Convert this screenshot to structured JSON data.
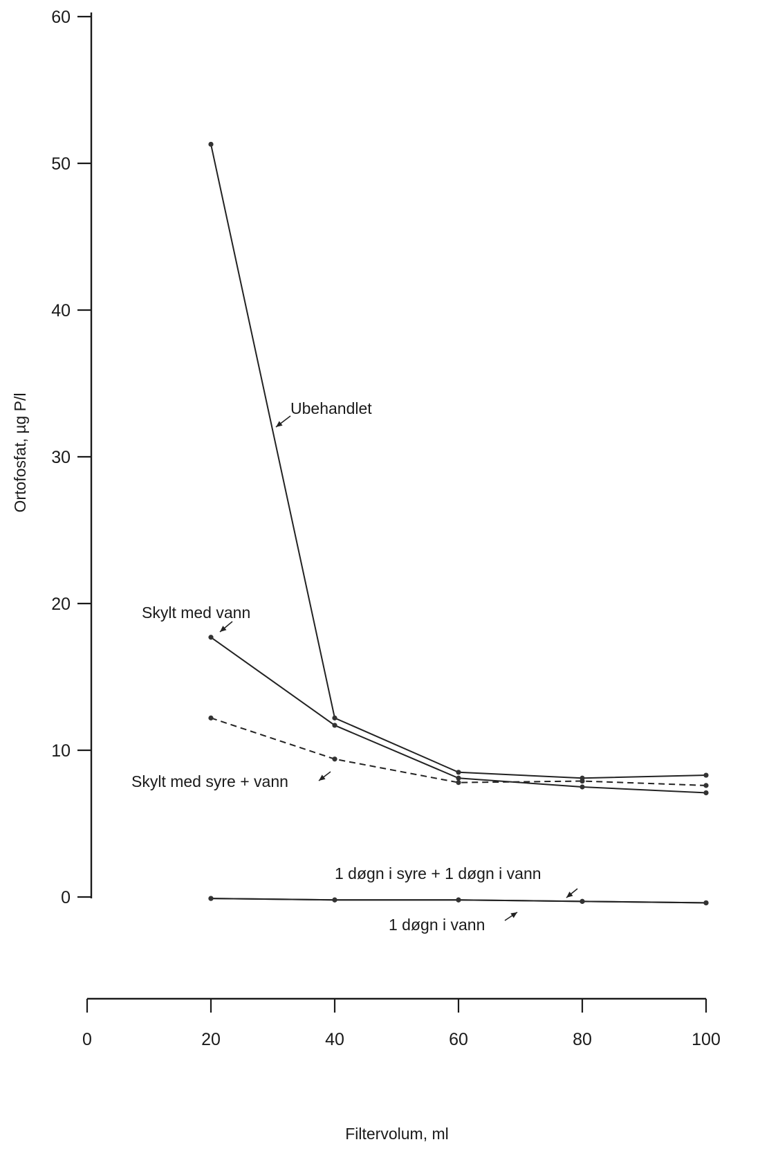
{
  "chart_data": {
    "type": "line",
    "xlabel": "Filtervolum, ml",
    "ylabel": "Ortofosfat, µg P/l",
    "xlim": [
      0,
      100
    ],
    "ylim": [
      0,
      60
    ],
    "xticks": [
      "0",
      "20",
      "40",
      "60",
      "80",
      "100"
    ],
    "yticks": [
      "0",
      "10",
      "20",
      "30",
      "40",
      "50",
      "60"
    ],
    "grid": false,
    "series": [
      {
        "name": "Ubehandlet",
        "style": "solid",
        "x": [
          20,
          40,
          60,
          80,
          100
        ],
        "y": [
          51.3,
          12.2,
          8.5,
          8.1,
          8.3
        ]
      },
      {
        "name": "Skylt med vann",
        "style": "solid",
        "x": [
          20,
          40,
          60,
          80,
          100
        ],
        "y": [
          17.7,
          11.7,
          8.1,
          7.5,
          7.1
        ]
      },
      {
        "name": "Skylt med syre + vann",
        "style": "dashed",
        "x": [
          20,
          40,
          60,
          80,
          100
        ],
        "y": [
          12.2,
          9.4,
          7.8,
          7.9,
          7.6
        ]
      },
      {
        "name": "1 døgn i syre + 1 døgn i vann",
        "style": "solid",
        "x": [
          20,
          40,
          60,
          80,
          100
        ],
        "y": [
          -0.1,
          -0.2,
          -0.2,
          -0.3,
          -0.4
        ]
      },
      {
        "name": "1 døgn i vann",
        "style": "solid",
        "x": [
          20,
          40,
          60,
          80,
          100
        ],
        "y": [
          -0.1,
          -0.2,
          -0.2,
          -0.3,
          -0.4
        ]
      }
    ],
    "annotations": [
      {
        "id": "ubehandlet",
        "text": "Ubehandlet"
      },
      {
        "id": "skylt-vann",
        "text": "Skylt med vann"
      },
      {
        "id": "skylt-syre-vann",
        "text": "Skylt med syre + vann"
      },
      {
        "id": "syre-vann-dogn",
        "text": "1 døgn i syre + 1 døgn i vann"
      },
      {
        "id": "vann-dogn",
        "text": "1 døgn i vann"
      }
    ]
  }
}
